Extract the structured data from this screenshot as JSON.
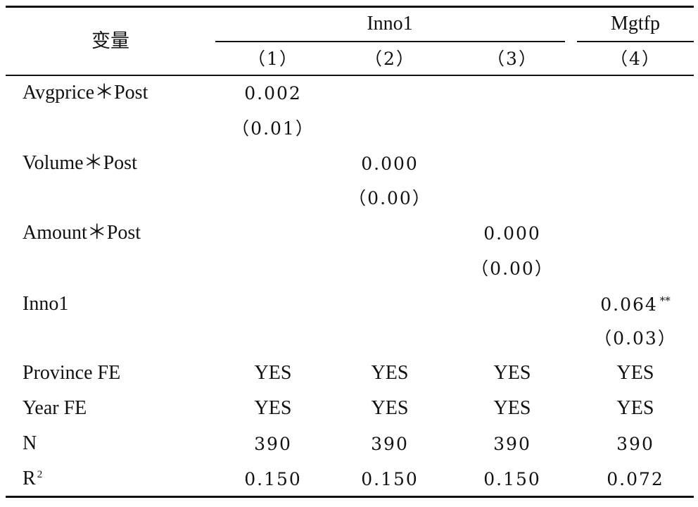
{
  "table": {
    "stub_header": "变量",
    "group_headers": [
      {
        "label": "Inno1"
      },
      {
        "label": "Mgtfp"
      }
    ],
    "column_numbers": [
      "（1）",
      "（2）",
      "（3）",
      "（4）"
    ],
    "rows": [
      {
        "label": "Avgprice＊Post",
        "coef": [
          "0.002",
          "",
          "",
          ""
        ],
        "se": [
          "（0.01）",
          "",
          "",
          ""
        ]
      },
      {
        "label": "Volume＊Post",
        "coef": [
          "",
          "0.000",
          "",
          ""
        ],
        "se": [
          "",
          "（0.00）",
          "",
          ""
        ]
      },
      {
        "label": "Amount＊Post",
        "coef": [
          "",
          "",
          "0.000",
          ""
        ],
        "se": [
          "",
          "",
          "（0.00）",
          ""
        ]
      },
      {
        "label": "Inno1",
        "coef": [
          "",
          "",
          "",
          "0.064"
        ],
        "coef_stars": [
          "",
          "",
          "",
          "**"
        ],
        "se": [
          "",
          "",
          "",
          "（0.03）"
        ]
      }
    ],
    "controls": [
      {
        "label": "Province FE",
        "values": [
          "YES",
          "YES",
          "YES",
          "YES"
        ]
      },
      {
        "label": "Year FE",
        "values": [
          "YES",
          "YES",
          "YES",
          "YES"
        ]
      }
    ],
    "stats": [
      {
        "label": "N",
        "values": [
          "390",
          "390",
          "390",
          "390"
        ]
      },
      {
        "label": "R",
        "label_sup": "2",
        "values": [
          "0.150",
          "0.150",
          "0.150",
          "0.072"
        ]
      }
    ]
  }
}
